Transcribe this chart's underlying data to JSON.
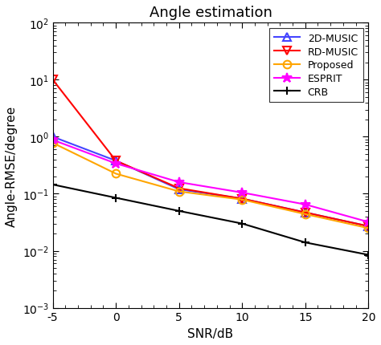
{
  "title": "Angle estimation",
  "xlabel": "SNR/dB",
  "ylabel": "Angle-RMSE/degree",
  "snr": [
    -5,
    0,
    5,
    10,
    15,
    20
  ],
  "music_2d": [
    1.0,
    0.38,
    0.12,
    0.082,
    0.047,
    0.027
  ],
  "rd_music": [
    10.0,
    0.38,
    0.125,
    0.082,
    0.047,
    0.027
  ],
  "proposed": [
    0.78,
    0.225,
    0.11,
    0.079,
    0.044,
    0.025
  ],
  "esprit": [
    0.88,
    0.34,
    0.16,
    0.105,
    0.065,
    0.032
  ],
  "crb": [
    0.145,
    0.085,
    0.05,
    0.03,
    0.014,
    0.0085
  ],
  "color_2d_music": "#4444FF",
  "color_rd_music": "#FF0000",
  "color_proposed": "#FFA500",
  "color_esprit": "#FF00FF",
  "color_crb": "#000000",
  "ylim_bottom": 0.001,
  "ylim_top": 100.0,
  "xlim_left": -5,
  "xlim_right": 20,
  "title_fontsize": 13,
  "label_fontsize": 11,
  "tick_fontsize": 10,
  "legend_fontsize": 9,
  "bg_color": "#ffffff"
}
